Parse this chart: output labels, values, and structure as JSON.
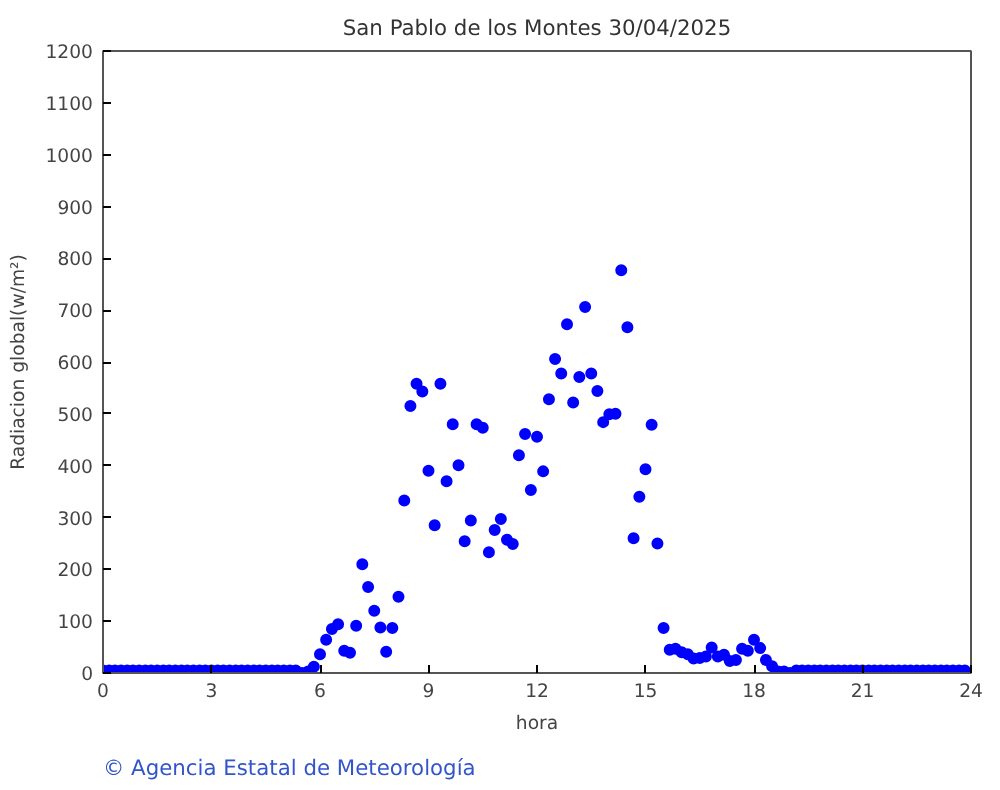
{
  "chart_data": {
    "type": "scatter",
    "title": "San Pablo de los Montes 30/04/2025",
    "xlabel": "hora",
    "ylabel": "Radiacion global(w/m²)",
    "x": [
      0,
      0.17,
      0.33,
      0.5,
      0.67,
      0.83,
      1,
      1.17,
      1.33,
      1.5,
      1.67,
      1.83,
      2,
      2.17,
      2.33,
      2.5,
      2.67,
      2.83,
      3,
      3.17,
      3.33,
      3.5,
      3.67,
      3.83,
      4,
      4.17,
      4.33,
      4.5,
      4.67,
      4.83,
      5,
      5.17,
      5.33,
      5.5,
      5.67,
      5.83,
      6,
      6.17,
      6.33,
      6.5,
      6.67,
      6.83,
      7,
      7.17,
      7.33,
      7.5,
      7.67,
      7.83,
      8,
      8.17,
      8.33,
      8.5,
      8.67,
      8.83,
      9,
      9.17,
      9.33,
      9.5,
      9.67,
      9.83,
      10,
      10.17,
      10.33,
      10.5,
      10.67,
      10.83,
      11,
      11.17,
      11.33,
      11.5,
      11.67,
      11.83,
      12,
      12.17,
      12.33,
      12.5,
      12.67,
      12.83,
      13,
      13.17,
      13.33,
      13.5,
      13.67,
      13.83,
      14,
      14.17,
      14.33,
      14.5,
      14.67,
      14.83,
      15,
      15.17,
      15.33,
      15.5,
      15.67,
      15.83,
      16,
      16.17,
      16.33,
      16.5,
      16.67,
      16.83,
      17,
      17.17,
      17.33,
      17.5,
      17.67,
      17.83,
      18,
      18.17,
      18.33,
      18.5,
      18.67,
      18.83,
      19,
      19.17,
      19.33,
      19.5,
      19.67,
      19.83,
      20,
      20.17,
      20.33,
      20.5,
      20.67,
      20.83,
      21,
      21.17,
      21.33,
      21.5,
      21.67,
      21.83,
      22,
      22.17,
      22.33,
      22.5,
      22.67,
      22.83,
      23,
      23.17,
      23.33,
      23.5,
      23.67,
      23.83
    ],
    "series": [
      {
        "color": "#0000ff",
        "values": [
          5,
          5,
          5,
          5,
          5,
          5,
          5,
          5,
          5,
          5,
          5,
          5,
          5,
          5,
          5,
          5,
          5,
          5,
          5,
          5,
          5,
          5,
          5,
          5,
          5,
          5,
          5,
          5,
          5,
          5,
          5,
          5,
          5,
          0,
          3,
          12,
          36,
          64,
          85,
          94,
          43,
          39,
          91,
          210,
          166,
          120,
          88,
          41,
          87,
          147,
          333,
          515,
          558,
          543,
          390,
          285,
          558,
          370,
          480,
          401,
          254,
          294,
          480,
          473,
          233,
          276,
          297,
          257,
          249,
          420,
          461,
          353,
          456,
          389,
          528,
          606,
          578,
          673,
          522,
          571,
          706,
          578,
          544,
          484,
          499,
          500,
          777,
          667,
          260,
          340,
          393,
          479,
          250,
          87,
          45,
          47,
          40,
          36,
          28,
          29,
          32,
          49,
          32,
          35,
          23,
          25,
          47,
          43,
          64,
          48,
          25,
          13,
          3,
          3,
          0,
          5,
          5,
          5,
          5,
          5,
          5,
          5,
          5,
          5,
          5,
          5,
          5,
          5,
          5,
          5,
          5,
          5,
          5,
          5,
          5,
          5,
          5,
          5,
          5,
          5,
          5,
          5,
          5,
          5
        ]
      }
    ],
    "xlim": [
      0,
      24
    ],
    "xticks": [
      0,
      3,
      6,
      9,
      12,
      15,
      18,
      21,
      24
    ],
    "ylim": [
      0,
      1200
    ],
    "yticks": [
      0,
      100,
      200,
      300,
      400,
      500,
      600,
      700,
      800,
      900,
      1000,
      1100,
      1200
    ],
    "marker": "circle",
    "grid": false,
    "annotations": [
      "© Agencia Estatal de Meteorología"
    ]
  }
}
